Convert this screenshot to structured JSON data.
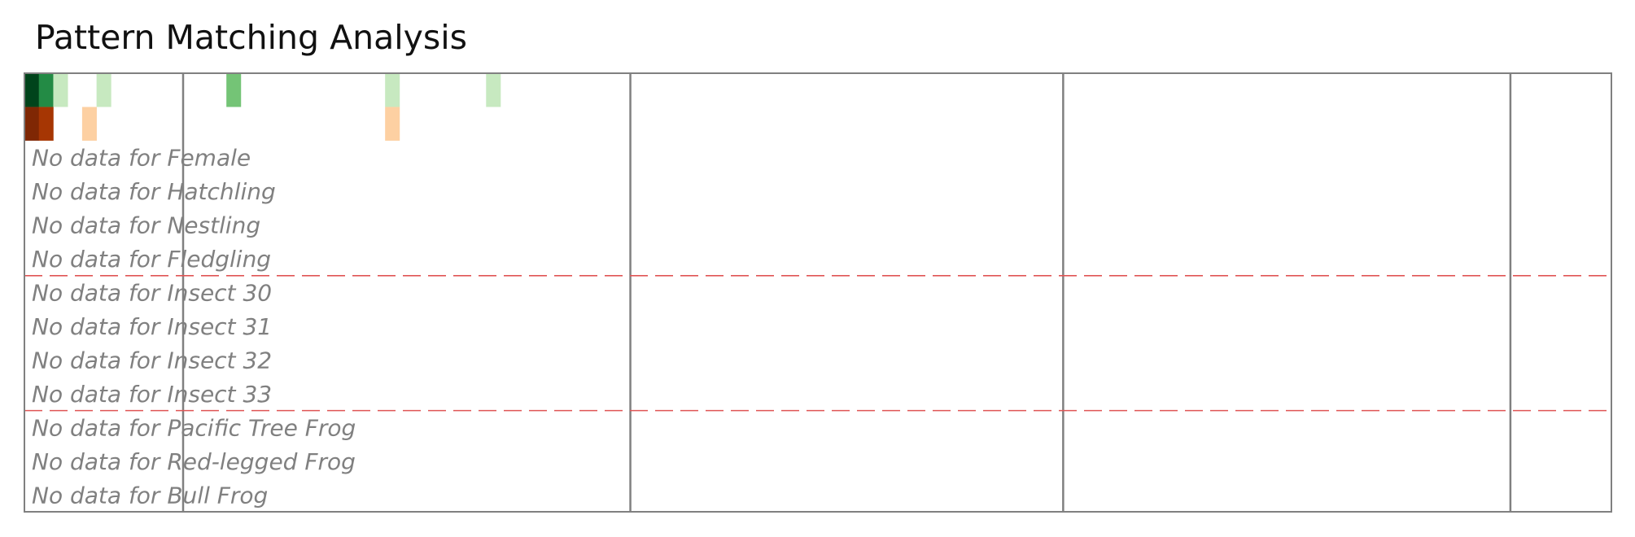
{
  "chart_data": {
    "type": "heatmap",
    "title": "Pattern Matching Analysis",
    "columns": 110,
    "colors": {
      "frame": "#808080",
      "separator": "#e05555",
      "empty_text": "#808080"
    },
    "rows": [
      {
        "name": "row-1",
        "palette": "greens",
        "cells": [
          {
            "col": 0,
            "level": 1.0
          },
          {
            "col": 1,
            "level": 0.75
          },
          {
            "col": 2,
            "level": 0.15
          },
          {
            "col": 5,
            "level": 0.15
          },
          {
            "col": 14,
            "level": 0.4
          },
          {
            "col": 25,
            "level": 0.15
          },
          {
            "col": 32,
            "level": 0.15
          }
        ]
      },
      {
        "name": "row-2",
        "palette": "oranges",
        "cells": [
          {
            "col": 0,
            "level": 1.0
          },
          {
            "col": 1,
            "level": 0.8
          },
          {
            "col": 4,
            "level": 0.2
          },
          {
            "col": 25,
            "level": 0.2
          }
        ]
      },
      {
        "label": "No data for Female"
      },
      {
        "label": "No data for Hatchling"
      },
      {
        "label": "No data for Nestling"
      },
      {
        "label": "No data for Fledgling"
      },
      {
        "label": "No data for Insect 30"
      },
      {
        "label": "No data for Insect 31"
      },
      {
        "label": "No data for Insect 32"
      },
      {
        "label": "No data for Insect 33"
      },
      {
        "label": "No data for Pacific Tree Frog"
      },
      {
        "label": "No data for Red-legged Frog"
      },
      {
        "label": "No data for Bull Frog"
      }
    ],
    "vertical_dividers_after_column": [
      11,
      42,
      72,
      103
    ],
    "horizontal_dividers_after_row": [
      6,
      10
    ]
  }
}
